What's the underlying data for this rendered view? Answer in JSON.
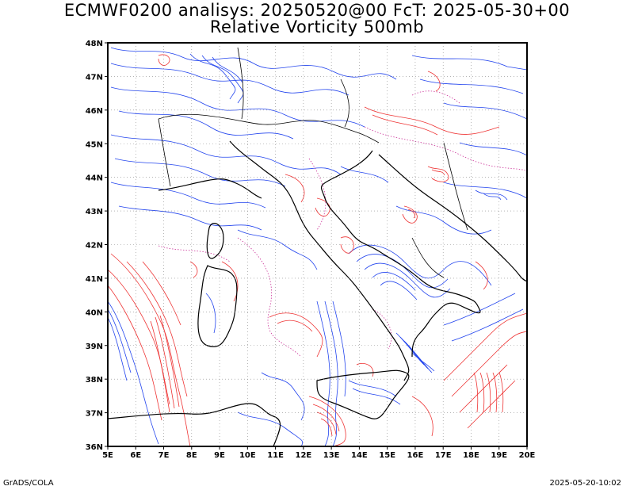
{
  "title": {
    "line1": "ECMWF0200 analisys: 20250520@00 FcT: 2025-05-30+00",
    "line2": "Relative Vorticity 500mb"
  },
  "footer": {
    "left": "GrADS/COLA",
    "right": "2025-05-20-10:02"
  },
  "map": {
    "lon_range": [
      5,
      20
    ],
    "lat_range": [
      36,
      48
    ],
    "lon_ticks": [
      "5E",
      "6E",
      "7E",
      "8E",
      "9E",
      "10E",
      "11E",
      "12E",
      "13E",
      "14E",
      "15E",
      "16E",
      "17E",
      "18E",
      "19E",
      "20E"
    ],
    "lat_ticks": [
      "36N",
      "37N",
      "38N",
      "39N",
      "40N",
      "41N",
      "42N",
      "43N",
      "44N",
      "45N",
      "46N",
      "47N",
      "48N"
    ],
    "grid": true,
    "colors": {
      "positive": "#ee3333",
      "negative": "#2244ee",
      "zero": "#cc3399",
      "coast": "#000000",
      "grid": "#888888"
    }
  }
}
